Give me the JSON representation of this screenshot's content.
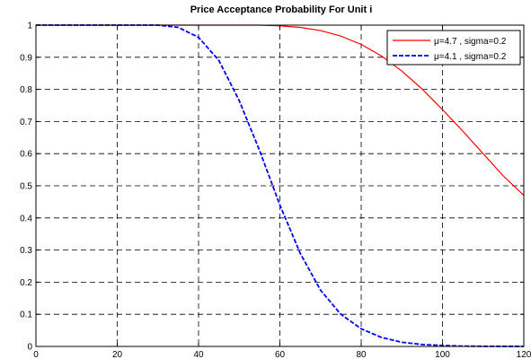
{
  "chart_data": {
    "type": "line",
    "title": "Price Acceptance Probability For Unit i",
    "xlabel": "",
    "ylabel": "",
    "xlim": [
      0,
      120
    ],
    "ylim": [
      0,
      1
    ],
    "x_ticks": [
      "0",
      "20",
      "40",
      "60",
      "80",
      "100",
      "120"
    ],
    "y_ticks": [
      "0",
      "0.1",
      "0.2",
      "0.3",
      "0.4",
      "0.5",
      "0.6",
      "0.7",
      "0.8",
      "0.9",
      "1"
    ],
    "grid": true,
    "legend_position": "top-right",
    "series": [
      {
        "name": "μ=4.7 , sigma=0.2",
        "color": "#ff0000",
        "style": "solid",
        "x": [
          0,
          10,
          20,
          30,
          40,
          50,
          55,
          60,
          65,
          70,
          75,
          80,
          85,
          90,
          95,
          100,
          105,
          110,
          115,
          120
        ],
        "y": [
          1,
          1,
          1,
          1,
          1,
          1,
          1,
          0.998,
          0.993,
          0.983,
          0.966,
          0.94,
          0.904,
          0.857,
          0.801,
          0.737,
          0.67,
          0.6,
          0.53,
          0.47
        ]
      },
      {
        "name": "μ=4.1 , sigma=0.2",
        "color": "#0000ff",
        "style": "dashed",
        "x": [
          0,
          10,
          20,
          30,
          35,
          40,
          45,
          50,
          55,
          60,
          65,
          70,
          75,
          80,
          85,
          90,
          95,
          100,
          105,
          110,
          115,
          120
        ],
        "y": [
          1,
          1,
          1,
          1,
          0.993,
          0.962,
          0.89,
          0.765,
          0.61,
          0.44,
          0.29,
          0.175,
          0.1,
          0.055,
          0.028,
          0.013,
          0.006,
          0.003,
          0.001,
          0.0005,
          0.0002,
          0.0001
        ]
      }
    ]
  }
}
